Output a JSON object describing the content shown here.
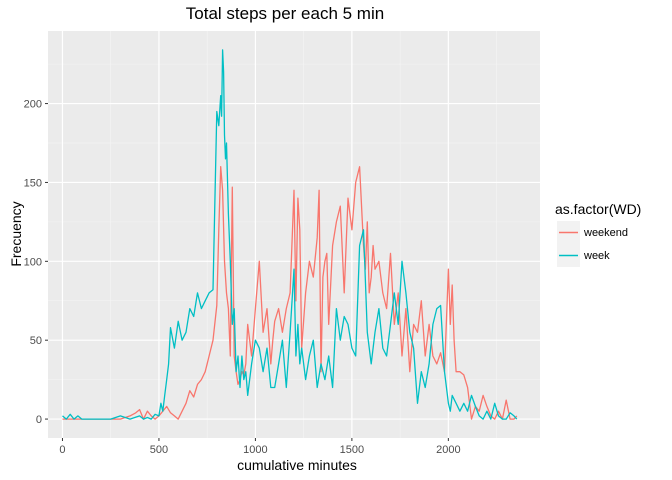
{
  "chart_data": {
    "type": "line",
    "title": "Total steps per each 5 min",
    "xlabel": "cumulative minutes",
    "ylabel": "Frecuency",
    "xlim": [
      -75,
      2475
    ],
    "ylim": [
      -12,
      246
    ],
    "xticks": [
      0,
      500,
      1000,
      1500,
      2000
    ],
    "yticks": [
      0,
      50,
      100,
      150,
      200
    ],
    "grid": true,
    "legend": {
      "title": "as.factor(WD)",
      "placement": "right"
    },
    "series": [
      {
        "name": "weekend",
        "color": "#f8766d",
        "x": [
          0,
          100,
          200,
          300,
          350,
          380,
          400,
          420,
          440,
          460,
          480,
          500,
          520,
          540,
          560,
          580,
          600,
          620,
          640,
          660,
          680,
          700,
          720,
          740,
          760,
          780,
          800,
          810,
          820,
          830,
          840,
          850,
          860,
          870,
          880,
          890,
          900,
          910,
          920,
          930,
          940,
          950,
          960,
          980,
          1000,
          1020,
          1040,
          1060,
          1080,
          1090,
          1100,
          1120,
          1140,
          1160,
          1180,
          1200,
          1210,
          1220,
          1230,
          1240,
          1260,
          1280,
          1300,
          1320,
          1330,
          1340,
          1350,
          1360,
          1370,
          1380,
          1400,
          1420,
          1440,
          1460,
          1480,
          1500,
          1520,
          1540,
          1560,
          1570,
          1580,
          1590,
          1600,
          1610,
          1620,
          1640,
          1660,
          1680,
          1700,
          1720,
          1740,
          1760,
          1780,
          1800,
          1820,
          1840,
          1860,
          1880,
          1900,
          1920,
          1940,
          1960,
          1980,
          2000,
          2010,
          2020,
          2030,
          2040,
          2060,
          2080,
          2100,
          2120,
          2140,
          2160,
          2180,
          2200,
          2220,
          2240,
          2260,
          2280,
          2300,
          2320,
          2340,
          2355
        ],
        "values": [
          0,
          0,
          0,
          0,
          2,
          4,
          6,
          0,
          5,
          2,
          0,
          2,
          5,
          8,
          4,
          2,
          0,
          5,
          10,
          18,
          14,
          22,
          25,
          30,
          40,
          50,
          72,
          120,
          160,
          145,
          100,
          80,
          70,
          40,
          147,
          40,
          30,
          22,
          25,
          30,
          28,
          35,
          60,
          40,
          70,
          100,
          55,
          70,
          35,
          50,
          62,
          70,
          55,
          70,
          80,
          145,
          75,
          140,
          120,
          45,
          80,
          100,
          90,
          115,
          145,
          30,
          90,
          100,
          105,
          60,
          110,
          125,
          135,
          80,
          140,
          120,
          150,
          160,
          110,
          95,
          125,
          80,
          90,
          110,
          95,
          100,
          80,
          70,
          105,
          60,
          80,
          40,
          70,
          30,
          60,
          55,
          75,
          40,
          60,
          40,
          35,
          42,
          30,
          95,
          60,
          85,
          50,
          30,
          30,
          28,
          20,
          0,
          8,
          5,
          15,
          8,
          2,
          0,
          5,
          0,
          12,
          0,
          0,
          2
        ]
      },
      {
        "name": "week",
        "color": "#00bfc4",
        "x": [
          0,
          20,
          40,
          60,
          80,
          100,
          150,
          200,
          250,
          300,
          350,
          400,
          420,
          440,
          460,
          480,
          500,
          510,
          520,
          530,
          540,
          550,
          560,
          580,
          600,
          620,
          640,
          660,
          680,
          700,
          720,
          740,
          760,
          780,
          800,
          810,
          820,
          825,
          830,
          835,
          840,
          845,
          850,
          860,
          870,
          880,
          890,
          900,
          910,
          920,
          930,
          940,
          950,
          960,
          980,
          1000,
          1020,
          1040,
          1060,
          1080,
          1100,
          1120,
          1140,
          1160,
          1180,
          1200,
          1210,
          1220,
          1230,
          1240,
          1260,
          1280,
          1300,
          1320,
          1340,
          1360,
          1380,
          1400,
          1420,
          1440,
          1460,
          1480,
          1500,
          1520,
          1540,
          1560,
          1580,
          1600,
          1620,
          1640,
          1660,
          1680,
          1700,
          1720,
          1740,
          1760,
          1780,
          1800,
          1820,
          1840,
          1860,
          1880,
          1900,
          1920,
          1940,
          1960,
          1980,
          2000,
          2010,
          2020,
          2040,
          2060,
          2080,
          2100,
          2120,
          2140,
          2160,
          2180,
          2200,
          2220,
          2240,
          2260,
          2280,
          2300,
          2320,
          2340,
          2355
        ],
        "values": [
          2,
          0,
          3,
          0,
          2,
          0,
          0,
          0,
          0,
          2,
          0,
          2,
          0,
          1,
          0,
          3,
          2,
          10,
          5,
          15,
          25,
          35,
          58,
          45,
          62,
          50,
          55,
          70,
          65,
          80,
          70,
          75,
          80,
          82,
          195,
          186,
          205,
          192,
          234,
          220,
          180,
          165,
          175,
          130,
          100,
          60,
          70,
          30,
          40,
          20,
          40,
          25,
          30,
          15,
          35,
          50,
          45,
          30,
          45,
          20,
          20,
          35,
          50,
          20,
          55,
          95,
          40,
          60,
          35,
          45,
          25,
          40,
          50,
          20,
          35,
          25,
          40,
          20,
          70,
          50,
          65,
          60,
          45,
          40,
          110,
          120,
          55,
          35,
          55,
          70,
          45,
          40,
          60,
          80,
          60,
          100,
          80,
          55,
          45,
          10,
          30,
          20,
          35,
          60,
          70,
          72,
          30,
          10,
          5,
          15,
          10,
          5,
          10,
          5,
          15,
          8,
          2,
          0,
          5,
          0,
          10,
          2,
          0,
          0,
          4,
          2,
          0
        ]
      }
    ]
  }
}
